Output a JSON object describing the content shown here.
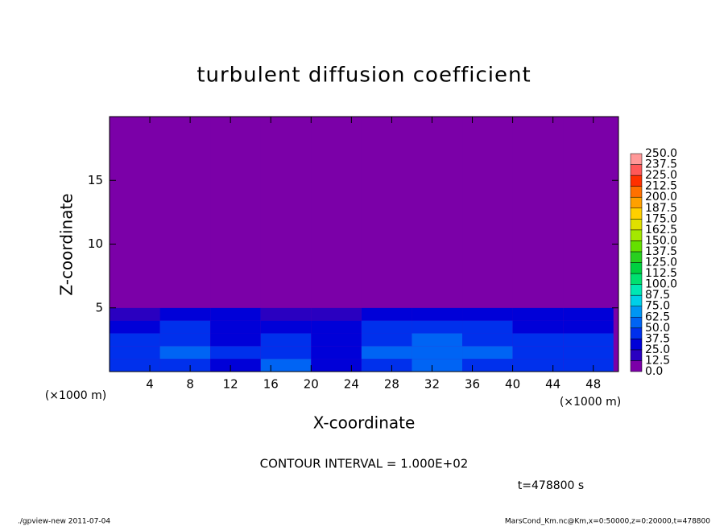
{
  "chart_data": {
    "type": "heatmap",
    "title": "turbulent diffusion coefficient",
    "x_label": "X-coordinate",
    "y_label": "Z-coordinate",
    "x_unit": "(×1000 m)",
    "y_unit": "(×1000 m)",
    "xlim": [
      0,
      50.5
    ],
    "ylim": [
      0,
      20
    ],
    "xticks": [
      4,
      8,
      12,
      16,
      20,
      24,
      28,
      32,
      36,
      40,
      44,
      48
    ],
    "yticks": [
      5,
      10,
      15
    ],
    "xbins": [
      0,
      5,
      10,
      15,
      20,
      25,
      30,
      35,
      40,
      45,
      50
    ],
    "ybins": [
      0,
      1,
      2,
      3,
      4,
      5,
      20
    ],
    "z": [
      [
        40,
        45,
        35,
        55,
        30,
        40,
        50,
        45,
        40,
        45
      ],
      [
        45,
        50,
        40,
        45,
        35,
        50,
        55,
        50,
        45,
        40
      ],
      [
        40,
        45,
        35,
        40,
        30,
        45,
        50,
        45,
        40,
        40
      ],
      [
        35,
        40,
        30,
        30,
        25,
        40,
        45,
        40,
        35,
        35
      ],
      [
        20,
        30,
        25,
        20,
        15,
        30,
        35,
        30,
        25,
        25
      ],
      [
        3,
        5,
        5,
        5,
        3,
        5,
        5,
        3,
        5,
        3
      ]
    ],
    "colorbar": {
      "levels": [
        {
          "value": 0,
          "label": "0.0"
        },
        12.5,
        {
          "value": 25,
          "label": "25.0"
        },
        37.5,
        {
          "value": 50,
          "label": "50.0"
        },
        62.5,
        {
          "value": 75,
          "label": "75.0"
        },
        87.5,
        {
          "value": 100,
          "label": "100.0"
        },
        112.5,
        {
          "value": 125,
          "label": "125.0"
        },
        137.5,
        {
          "value": 150,
          "label": "150.0"
        },
        162.5,
        {
          "value": 175,
          "label": "175.0"
        },
        187.5,
        {
          "value": 200,
          "label": "200.0"
        },
        212.5,
        {
          "value": 225,
          "label": "225.0"
        },
        237.5,
        {
          "value": 250,
          "label": "250.0"
        }
      ],
      "colors": [
        "#7b00a8",
        "#2a00c0",
        "#0000d8",
        "#0030ec",
        "#0064f4",
        "#0096f4",
        "#00d0e8",
        "#00e8b4",
        "#00e070",
        "#00d040",
        "#28d020",
        "#64e000",
        "#a4e800",
        "#e0e000",
        "#ffd000",
        "#ffa000",
        "#ff7000",
        "#ff3000",
        "#ff5858",
        "#ff9898"
      ]
    },
    "annotations": [
      "CONTOUR INTERVAL = 1.000E+02",
      "t=478800 s"
    ],
    "footer_left": "./gpview-new  2011-07-04",
    "footer_right": "MarsCond_Km.nc@Km,x=0:50000,z=0:20000,t=478800"
  }
}
